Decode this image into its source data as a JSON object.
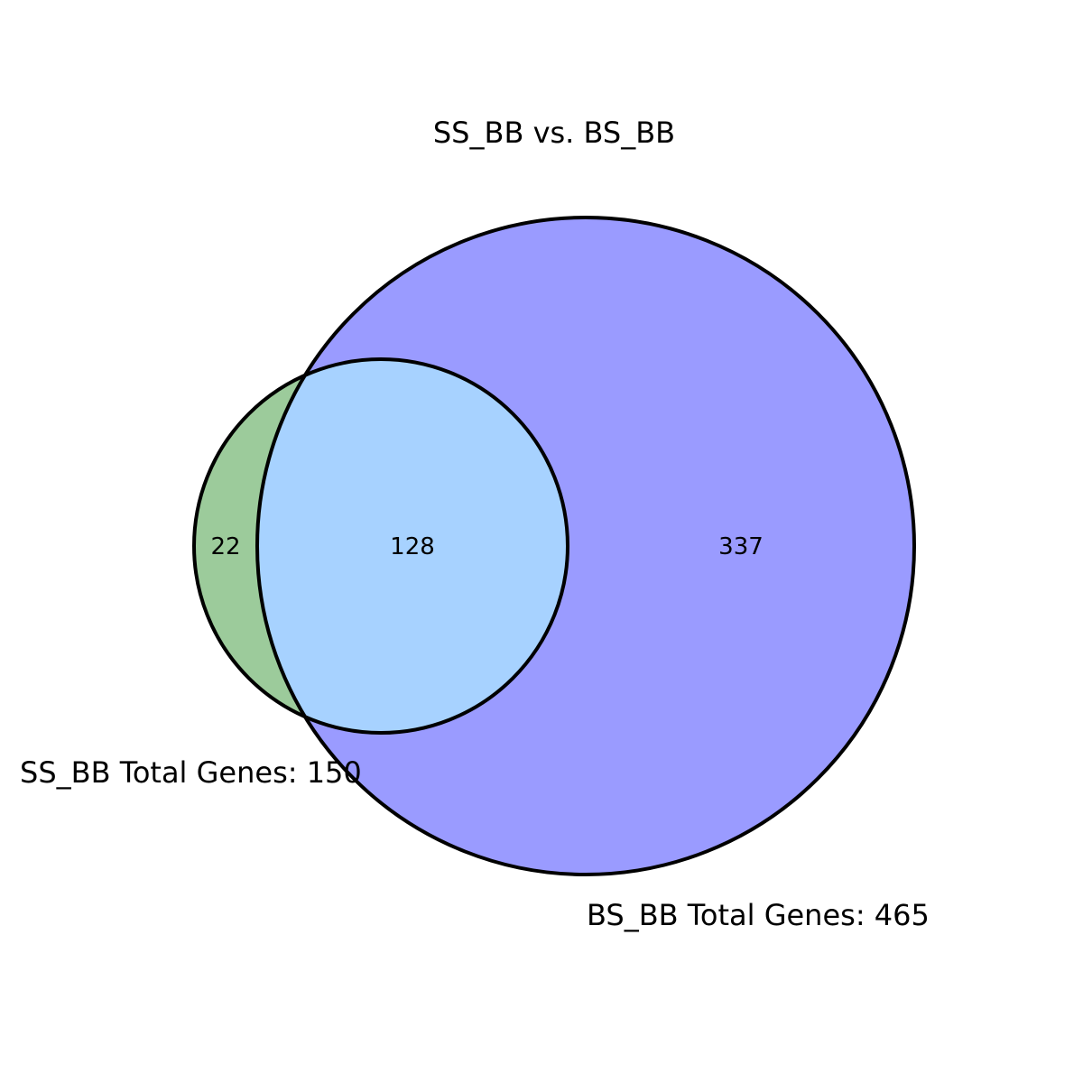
{
  "diagram": {
    "title": "SS_BB vs. BS_BB",
    "sets": [
      {
        "key": "ss_bb",
        "label": "SS_BB Total Genes: 150",
        "color": "#9ccb9b"
      },
      {
        "key": "bs_bb",
        "label": "BS_BB Total Genes: 465",
        "color": "#9a9bff"
      }
    ],
    "regions": {
      "ss_only": "22",
      "overlap": "128",
      "bs_only": "337"
    },
    "overlap_color": "#a7d2ff",
    "stroke_color": "#000000"
  }
}
